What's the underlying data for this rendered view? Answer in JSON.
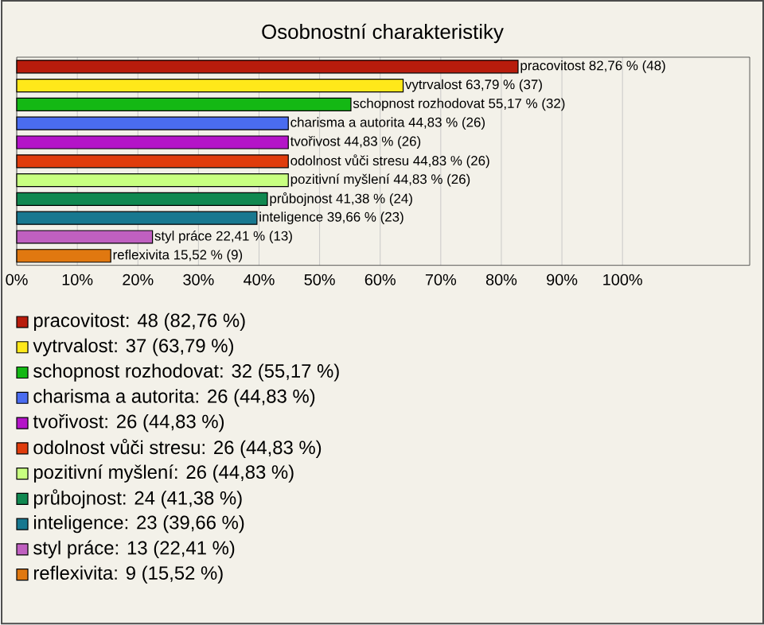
{
  "chart_data": {
    "type": "bar",
    "orientation": "horizontal",
    "title": "Osobnostní charakteristiky",
    "categories": [
      null,
      null,
      null,
      null,
      null,
      null,
      null,
      null,
      null,
      null,
      null
    ],
    "values": [
      82.76,
      63.79,
      55.17,
      44.83,
      44.83,
      44.83,
      44.83,
      41.38,
      39.66,
      22.41,
      15.52
    ],
    "value_labels": [
      "pracovitost 82,76 % (48)",
      "vytrvalost 63,79 % (37)",
      "schopnost rozhodovat 55,17 % (32)",
      "charisma a autorita 44,83 % (26)",
      "tvořivost 44,83 % (26)",
      "odolnost vůči stresu 44,83 % (26)",
      "pozitivní myšlení 44,83 % (26)",
      "průbojnost 41,38 % (24)",
      "inteligence 39,66 % (23)",
      "styl práce 22,41 % (13)",
      "reflexivita 15,52 % (9)"
    ],
    "colors": [
      "#b81c0c",
      "#ffe81a",
      "#14b814",
      "#4a6cf0",
      "#b414c8",
      "#e03c0c",
      "#c8ff80",
      "#108850",
      "#187890",
      "#c060c0",
      "#e07810"
    ],
    "xlim": [
      0,
      121
    ],
    "xticks": [
      {
        "value": 0,
        "label": "0%"
      },
      {
        "value": 10,
        "label": "10%"
      },
      {
        "value": 20,
        "label": "20%"
      },
      {
        "value": 30,
        "label": "30%"
      },
      {
        "value": 40,
        "label": "40%"
      },
      {
        "value": 50,
        "label": "50%"
      },
      {
        "value": 60,
        "label": "60%"
      },
      {
        "value": 70,
        "label": "70%"
      },
      {
        "value": 80,
        "label": "80%"
      },
      {
        "value": 90,
        "label": "90%"
      },
      {
        "value": 100,
        "label": "100%"
      }
    ],
    "grid": "x",
    "tick_labels": "x",
    "annotations": [
      "pracovitost: 48 (82,76 %)",
      "vytrvalost: 37 (63,79 %)",
      "schopnost rozhodovat: 32 (55,17 %)",
      "charisma a autorita: 26 (44,83 %)",
      "tvořivost: 26 (44,83 %)",
      "odolnost vůči stresu: 26 (44,83 %)",
      "pozitivní myšlení: 26 (44,83 %)",
      "průbojnost: 24 (41,38 %)",
      "inteligence: 23 (39,66 %)",
      "styl práce: 13 (22,41 %)",
      "reflexivita: 9 (15,52 %)"
    ]
  }
}
